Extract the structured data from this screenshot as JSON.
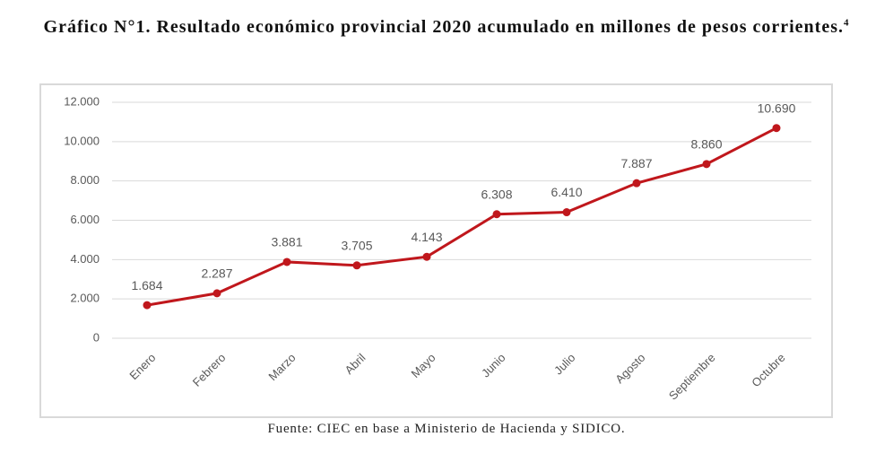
{
  "chart_data": {
    "type": "line",
    "title": "Gráfico N°1. Resultado económico provincial 2020 acumulado en millones de pesos corrientes.",
    "title_note": "4",
    "source": "Fuente: CIEC en base a Ministerio de Hacienda y SIDICO.",
    "categories": [
      "Enero",
      "Febrero",
      "Marzo",
      "Abril",
      "Mayo",
      "Junio",
      "Julio",
      "Agosto",
      "Septiembre",
      "Octubre"
    ],
    "values": [
      1684,
      2287,
      3881,
      3705,
      4143,
      6308,
      6410,
      7887,
      8860,
      10690
    ],
    "value_labels": [
      "1.684",
      "2.287",
      "3.881",
      "3.705",
      "4.143",
      "6.308",
      "6.410",
      "7.887",
      "8.860",
      "10.690"
    ],
    "color": "#c0171c",
    "ylim": [
      0,
      12000
    ],
    "yticks": [
      0,
      {
        "value": 2000,
        "label": "2.000"
      },
      {
        "value": 4000,
        "label": "4.000"
      },
      {
        "value": 6000,
        "label": "6.000"
      },
      {
        "value": 8000,
        "label": "8.000"
      },
      {
        "value": 10000,
        "label": "10.000"
      },
      {
        "value": 12000,
        "label": "12.000"
      }
    ],
    "grid": true
  }
}
